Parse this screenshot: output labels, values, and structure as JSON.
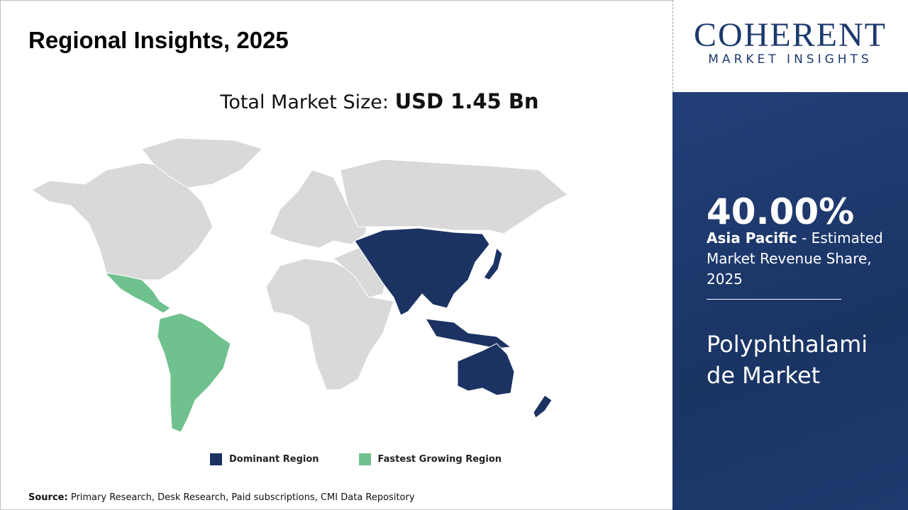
{
  "header": {
    "title": "Regional Insights, 2025"
  },
  "market_size": {
    "label": "Total Market Size:",
    "value": "USD 1.45 Bn"
  },
  "legend": [
    {
      "label": "Dominant Region",
      "color": "#1b3263"
    },
    {
      "label": "Fastest Growing Region",
      "color": "#6fc18d"
    }
  ],
  "source": {
    "label": "Source:",
    "text": "Primary Research, Desk Research, Paid subscriptions, CMI Data Repository"
  },
  "logo": {
    "name": "COHERENT",
    "tagline": "MARKET INSIGHTS"
  },
  "stat": {
    "value": "40.00%",
    "region": "Asia Pacific",
    "description": "- Estimated Market Revenue Share, 2025"
  },
  "market_name": "Polyphthalamide Market"
}
